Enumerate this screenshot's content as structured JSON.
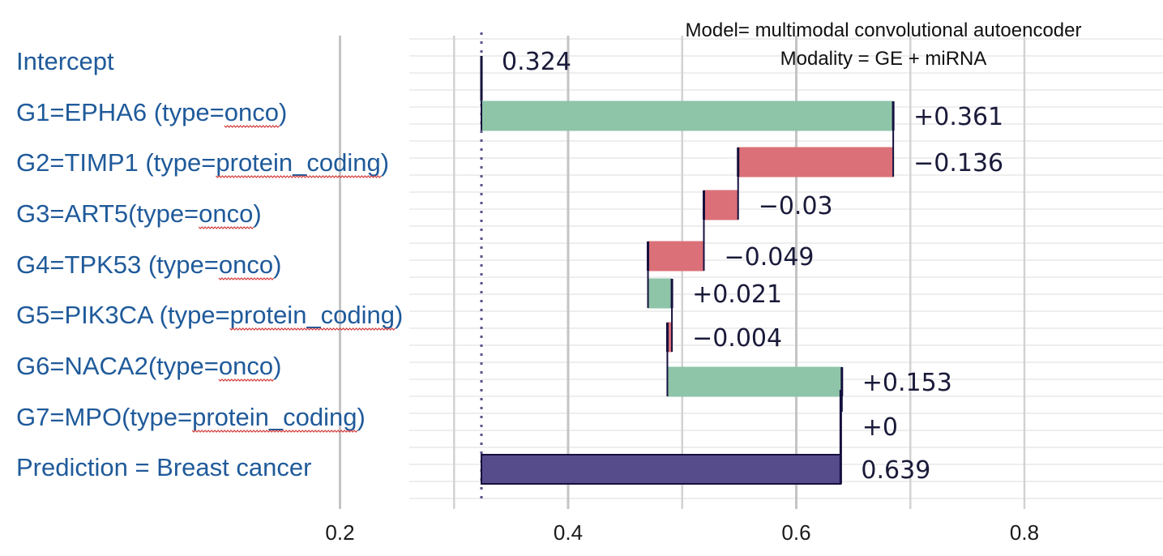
{
  "chart_data": {
    "type": "waterfall",
    "title": "Model= multimodal convolutional autoencoder",
    "subtitle": "Modality = GE + miRNA",
    "xlabel": "",
    "ylabel": "",
    "xlim": [
      0.16,
      0.82
    ],
    "xticks": [
      {
        "value": 0.2,
        "label": "0.2"
      },
      {
        "value": 0.4,
        "label": "0.4"
      },
      {
        "value": 0.6,
        "label": "0.6"
      },
      {
        "value": 0.8,
        "label": "0.8"
      }
    ],
    "baseline": 0.324,
    "grid": true,
    "colors": {
      "positive": "#8ec4a8",
      "negative": "#db7078",
      "prediction": "#564c8c",
      "connector": "#14103e",
      "label_text": "#1f5a9a"
    },
    "rows": [
      {
        "label": "Intercept",
        "underline": "",
        "kind": "intercept",
        "contribution": 0.324,
        "value_label": "0.324"
      },
      {
        "label": "G1=EPHA6 (type=onco)",
        "underline": "onco",
        "kind": "change",
        "contribution": 0.361,
        "value_label": "+0.361"
      },
      {
        "label": "G2=TIMP1 (type=protein_coding)",
        "underline": "protein_coding",
        "kind": "change",
        "contribution": -0.136,
        "value_label": "−0.136"
      },
      {
        "label": "G3=ART5(type=onco)",
        "underline": "onco",
        "kind": "change",
        "contribution": -0.03,
        "value_label": "−0.03"
      },
      {
        "label": "G4=TPK53 (type=onco)",
        "underline": "onco",
        "kind": "change",
        "contribution": -0.049,
        "value_label": "−0.049"
      },
      {
        "label": "G5=PIK3CA (type=protein_coding)",
        "underline": "protein_coding",
        "kind": "change",
        "contribution": 0.021,
        "value_label": "+0.021"
      },
      {
        "label": "G6=NACA2(type=onco)",
        "underline": "onco",
        "kind": "change",
        "contribution": -0.004,
        "value_label": "−0.004"
      },
      {
        "label": "G7=MPO(type=protein_coding)",
        "underline": "protein_coding",
        "kind": "change",
        "contribution": 0.153,
        "value_label": "+0.153"
      },
      {
        "label": "Prediction = Breast cancer",
        "underline": "",
        "kind": "change",
        "contribution": 0,
        "value_label": "+0"
      },
      {
        "label": "",
        "underline": "",
        "kind": "prediction",
        "contribution": 0.639,
        "value_label": "0.639"
      }
    ]
  }
}
